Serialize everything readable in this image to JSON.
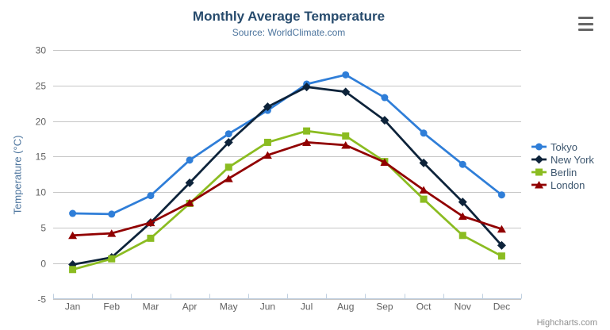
{
  "chart_data": {
    "type": "line",
    "title": "Monthly Average Temperature",
    "subtitle": "Source: WorldClimate.com",
    "xlabel": "",
    "ylabel": "Temperature (°C)",
    "categories": [
      "Jan",
      "Feb",
      "Mar",
      "Apr",
      "May",
      "Jun",
      "Jul",
      "Aug",
      "Sep",
      "Oct",
      "Nov",
      "Dec"
    ],
    "yticks": [
      -5,
      0,
      5,
      10,
      15,
      20,
      25,
      30
    ],
    "ylim": [
      -5,
      30
    ],
    "grid": true,
    "legend_position": "right",
    "series": [
      {
        "name": "Tokyo",
        "color": "#2f7ed8",
        "marker": "circle",
        "values": [
          7.0,
          6.9,
          9.5,
          14.5,
          18.2,
          21.5,
          25.2,
          26.5,
          23.3,
          18.3,
          13.9,
          9.6
        ]
      },
      {
        "name": "New York",
        "color": "#0d233a",
        "marker": "diamond",
        "values": [
          -0.2,
          0.8,
          5.7,
          11.3,
          17.0,
          22.0,
          24.8,
          24.1,
          20.1,
          14.1,
          8.6,
          2.5
        ]
      },
      {
        "name": "Berlin",
        "color": "#8bbc21",
        "marker": "square",
        "values": [
          -0.9,
          0.6,
          3.5,
          8.4,
          13.5,
          17.0,
          18.6,
          17.9,
          14.3,
          9.0,
          3.9,
          1.0
        ]
      },
      {
        "name": "London",
        "color": "#910000",
        "marker": "triangle",
        "values": [
          3.9,
          4.2,
          5.7,
          8.5,
          11.9,
          15.2,
          17.0,
          16.6,
          14.2,
          10.3,
          6.6,
          4.8
        ]
      }
    ]
  },
  "credit_label": "Highcharts.com",
  "icons": {
    "context_menu": "hamburger-icon"
  },
  "colors": {
    "title": "#274b6d",
    "subtitle": "#4d759e",
    "ytitle": "#4d759e",
    "axis_label": "#606060",
    "legend_text": "#3e576f",
    "grid": "#c6c6c6",
    "axis_line": "#c0d0e0",
    "burger": "#666666",
    "credit": "#8f8f8f"
  }
}
